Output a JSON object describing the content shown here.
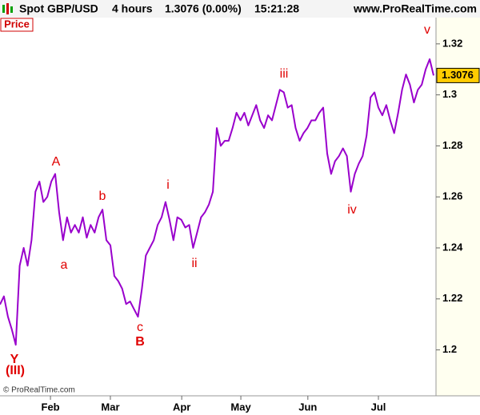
{
  "chart_data": {
    "type": "line",
    "header": {
      "instrument": "Spot GBP/USD",
      "timeframe": "4 hours",
      "quote": "1.3076 (0.00%)",
      "time": "15:21:28",
      "site": "www.ProRealTime.com"
    },
    "panel_label": "Price",
    "copyright": "© ProRealTime.com",
    "annotations": [
      "A",
      "a",
      "b",
      "c",
      "B",
      "i",
      "ii",
      "iii",
      "iv",
      "v",
      "Y",
      "(III)"
    ],
    "series": [
      {
        "name": "Spot GBP/USD",
        "color": "#9900cc",
        "values": [
          1.2178,
          1.221,
          1.213,
          1.208,
          1.202,
          1.233,
          1.24,
          1.233,
          1.243,
          1.262,
          1.266,
          1.258,
          1.26,
          1.266,
          1.269,
          1.254,
          1.243,
          1.252,
          1.246,
          1.249,
          1.246,
          1.252,
          1.244,
          1.249,
          1.246,
          1.252,
          1.255,
          1.243,
          1.241,
          1.229,
          1.227,
          1.224,
          1.218,
          1.219,
          1.216,
          1.213,
          1.224,
          1.237,
          1.24,
          1.243,
          1.249,
          1.252,
          1.258,
          1.251,
          1.243,
          1.252,
          1.251,
          1.248,
          1.249,
          1.24,
          1.246,
          1.252,
          1.254,
          1.257,
          1.262,
          1.287,
          1.28,
          1.282,
          1.282,
          1.287,
          1.293,
          1.29,
          1.293,
          1.288,
          1.292,
          1.296,
          1.29,
          1.287,
          1.292,
          1.29,
          1.296,
          1.302,
          1.301,
          1.295,
          1.296,
          1.287,
          1.282,
          1.285,
          1.287,
          1.29,
          1.29,
          1.293,
          1.295,
          1.277,
          1.269,
          1.274,
          1.276,
          1.279,
          1.276,
          1.262,
          1.269,
          1.273,
          1.276,
          1.284,
          1.299,
          1.301,
          1.295,
          1.292,
          1.296,
          1.29,
          1.285,
          1.293,
          1.302,
          1.308,
          1.304,
          1.297,
          1.302,
          1.304,
          1.31,
          1.314,
          1.3076
        ]
      }
    ],
    "xlim": [
      0,
      110
    ],
    "xticks": [
      {
        "value": 12.8,
        "label": "Feb"
      },
      {
        "value": 28.0,
        "label": "Mar"
      },
      {
        "value": 46.1,
        "label": "Apr"
      },
      {
        "value": 61.1,
        "label": "May"
      },
      {
        "value": 78.1,
        "label": "Jun"
      },
      {
        "value": 96.0,
        "label": "Jul"
      }
    ],
    "ylim": [
      1.182,
      1.3303
    ],
    "yticks": [
      1.2,
      1.22,
      1.24,
      1.26,
      1.28,
      1.3,
      1.32
    ]
  }
}
